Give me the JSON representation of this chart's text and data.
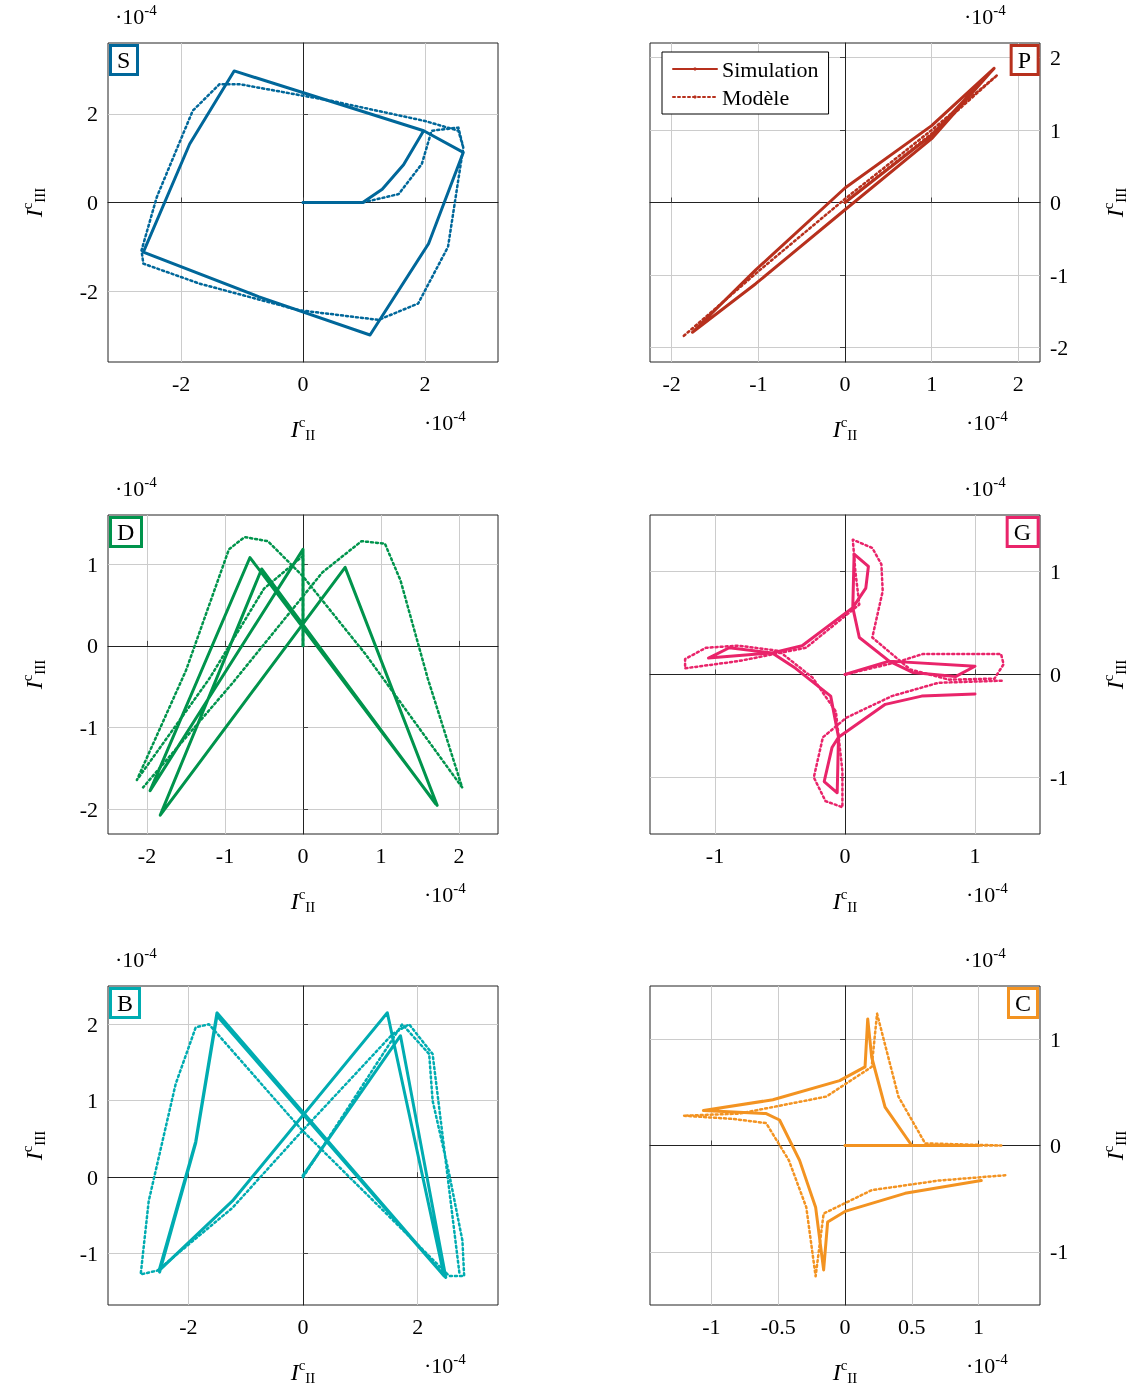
{
  "chart_data": [
    {
      "type": "line",
      "title": "S",
      "xlabel": "I$^{c}$$_{II}$",
      "ylabel": "I$^{c}$$_{III}$",
      "annotations": [
        "·10$^{-4}$",
        "·10$^{-4}$"
      ],
      "xlim": [
        -3.2,
        3.2
      ],
      "ylim": [
        -3.6,
        3.6
      ],
      "xticks": [
        -2,
        0,
        2
      ],
      "yticks": [
        -2,
        0,
        2
      ],
      "grid": true,
      "marker": "none",
      "series": [
        {
          "color": "#00679a",
          "line_style": "solid",
          "x": [
            0,
            0.98,
            1.3,
            1.65,
            1.98,
            2.63,
            2.06,
            1.1,
            -0.72,
            -2.62,
            -1.86,
            -1.13,
            1.98,
            2.63,
            2.06,
            1.1,
            -0.72,
            -2.62,
            -1.86,
            -1.13,
            1.98
          ],
          "values": [
            0,
            0,
            0.3,
            0.85,
            1.62,
            1.13,
            -0.93,
            -2.99,
            -2.13,
            -1.12,
            1.32,
            2.97,
            1.62,
            1.13,
            -0.93,
            -2.99,
            -2.13,
            -1.12,
            1.32,
            2.97,
            1.62
          ]
        },
        {
          "color": "#00679a",
          "line_style": "dotted",
          "x": [
            0,
            0.98,
            1.57,
            1.95,
            2.11,
            2.55,
            2.63,
            2.38,
            1.89,
            1.24,
            -0.07,
            -1.7,
            -2.62,
            -2.65,
            -2.4,
            -1.81,
            -1.37,
            -1.04,
            0.48,
            2.0,
            2.55,
            2.63
          ],
          "values": [
            0,
            0,
            0.19,
            0.87,
            1.62,
            1.69,
            1.24,
            -1.0,
            -2.28,
            -2.65,
            -2.43,
            -1.83,
            -1.38,
            -1.08,
            0.12,
            2.07,
            2.67,
            2.67,
            2.29,
            1.84,
            1.62,
            1.24
          ]
        }
      ]
    },
    {
      "type": "line",
      "title": "P",
      "xlabel": "I$^{c}$$_{II}$",
      "ylabel": "I$^{c}$$_{III}$",
      "annotations": [
        "·10$^{-4}$",
        "·10$^{-4}$"
      ],
      "xlim": [
        -2.25,
        2.25
      ],
      "ylim": [
        -2.2,
        2.2
      ],
      "xticks": [
        -2,
        -1,
        0,
        1,
        2
      ],
      "yticks": [
        -2,
        -1,
        0,
        1,
        2
      ],
      "grid": true,
      "marker": "none",
      "legend": "top left",
      "series": [
        {
          "name": "Simulation",
          "color": "#b7301d",
          "line_style": "solid",
          "x": [
            0,
            1.0,
            1.72,
            1.0,
            0,
            -1.03,
            -1.76,
            -1.03,
            0,
            1.0,
            1.72
          ],
          "values": [
            0,
            0.93,
            1.85,
            1.06,
            0.2,
            -0.93,
            -1.79,
            -1.12,
            -0.1,
            0.88,
            1.85
          ]
        },
        {
          "name": "Modèle",
          "color": "#b7301d",
          "line_style": "dotted",
          "x": [
            0,
            1.0,
            1.76,
            1.0,
            0,
            -1.0,
            -1.88
          ],
          "values": [
            0,
            0.95,
            1.76,
            1.0,
            0.05,
            -0.95,
            -1.86
          ]
        }
      ]
    },
    {
      "type": "line",
      "title": "D",
      "xlabel": "I$^{c}$$_{II}$",
      "ylabel": "I$^{c}$$_{III}$",
      "annotations": [
        "·10$^{-4}$",
        "·10$^{-4}$"
      ],
      "xlim": [
        -2.5,
        2.5
      ],
      "ylim": [
        -2.3,
        1.6
      ],
      "xticks": [
        -2,
        -1,
        0,
        1,
        2
      ],
      "yticks": [
        -2,
        -1,
        0,
        1
      ],
      "grid": true,
      "marker": "none",
      "series": [
        {
          "color": "#00944c",
          "line_style": "solid",
          "x": [
            0,
            0,
            -1.96,
            -0.68,
            1.72,
            0.54,
            -1.83,
            -0.53,
            1.7
          ],
          "values": [
            0,
            1.18,
            -1.77,
            1.08,
            -1.95,
            0.96,
            -2.07,
            0.94,
            -1.93
          ]
        },
        {
          "color": "#00944c",
          "line_style": "dotted",
          "x": [
            0,
            0,
            -0.5,
            -1.2,
            -2.13,
            -1.5,
            -0.95,
            -0.75,
            -0.45,
            0,
            0.8,
            2.04,
            1.6,
            1.25,
            1.05,
            0.75,
            0.25,
            -0.9,
            -2.05
          ],
          "values": [
            0,
            1.1,
            0.7,
            -0.4,
            -1.64,
            -0.3,
            1.18,
            1.33,
            1.28,
            0.85,
            -0.1,
            -1.73,
            -0.4,
            0.8,
            1.25,
            1.28,
            0.9,
            -0.45,
            -1.73
          ]
        }
      ]
    },
    {
      "type": "line",
      "title": "G",
      "xlabel": "I$^{c}$$_{II}$",
      "ylabel": "I$^{c}$$_{III}$",
      "annotations": [
        "·10$^{-4}$",
        "·10$^{-4}$"
      ],
      "xlim": [
        -1.5,
        1.5
      ],
      "ylim": [
        -1.55,
        1.55
      ],
      "xticks": [
        -1,
        0,
        1
      ],
      "yticks": [
        -1,
        0,
        1
      ],
      "grid": true,
      "marker": "none",
      "series": [
        {
          "color": "#e9246a",
          "line_style": "solid",
          "x": [
            0,
            0.34,
            1.0,
            0.85,
            0.52,
            0.34,
            0.11,
            0.06,
            0.07,
            0.18,
            0.16,
            0.06,
            -0.33,
            -0.56,
            -1.05,
            -0.89,
            -0.56,
            -0.38,
            -0.11,
            -0.05,
            -0.06,
            -0.16,
            -0.1,
            -0.05,
            0.31,
            0.59,
            1.0
          ],
          "values": [
            0,
            0.13,
            0.08,
            -0.02,
            0.02,
            0.13,
            0.36,
            0.65,
            1.17,
            1.05,
            0.84,
            0.65,
            0.28,
            0.21,
            0.16,
            0.26,
            0.21,
            0.06,
            -0.21,
            -0.61,
            -1.15,
            -1.04,
            -0.71,
            -0.61,
            -0.29,
            -0.21,
            -0.19
          ]
        },
        {
          "color": "#e9246a",
          "line_style": "dotted",
          "x": [
            0,
            0.4,
            0.6,
            1.2,
            1.22,
            1.15,
            0.8,
            0.5,
            0.21,
            0.29,
            0.28,
            0.21,
            0.06,
            0.08,
            0.11,
            -0.3,
            -0.82,
            -1.23,
            -1.23,
            -1.07,
            -0.82,
            -0.51,
            -0.25,
            -0.07,
            -0.02,
            -0.02,
            -0.15,
            -0.24,
            -0.17,
            0.01,
            0.36,
            0.72,
            1.21
          ],
          "values": [
            0,
            0.12,
            0.2,
            0.2,
            0.1,
            -0.04,
            -0.05,
            0.05,
            0.36,
            0.81,
            1.07,
            1.23,
            1.31,
            1.0,
            0.68,
            0.26,
            0.13,
            0.06,
            0.15,
            0.26,
            0.28,
            0.23,
            -0.03,
            -0.36,
            -0.94,
            -1.29,
            -1.23,
            -1.0,
            -0.61,
            -0.42,
            -0.21,
            -0.08,
            -0.06
          ]
        }
      ]
    },
    {
      "type": "line",
      "title": "B",
      "xlabel": "I$^{c}$$_{II}$",
      "ylabel": "I$^{c}$$_{III}$",
      "annotations": [
        "·10$^{-4}$",
        "·10$^{-4}$"
      ],
      "xlim": [
        -3.4,
        3.4
      ],
      "ylim": [
        -1.67,
        2.5
      ],
      "xticks": [
        -2,
        0,
        2
      ],
      "yticks": [
        -1,
        0,
        1,
        2
      ],
      "grid": true,
      "marker": "none",
      "series": [
        {
          "color": "#00acb1",
          "line_style": "solid",
          "x": [
            0,
            1.7,
            2.49,
            -1.5,
            -1.87,
            -2.51,
            -1.23,
            1.47,
            2.46,
            -1.5,
            -1.87,
            -2.5
          ],
          "values": [
            0.02,
            1.85,
            -1.31,
            2.15,
            0.47,
            -1.22,
            -0.31,
            2.15,
            -1.29,
            2.11,
            0.45,
            -1.24
          ]
        },
        {
          "color": "#00acb1",
          "line_style": "dotted",
          "x": [
            0,
            1.73,
            2.2,
            2.26,
            2.55,
            2.78,
            2.81,
            2.55,
            -0.01,
            -1.64,
            -1.87,
            -2.22,
            -2.69,
            -2.83,
            -2.54,
            -1.23,
            -0.07,
            1.56,
            1.85,
            2.26,
            2.73
          ],
          "values": [
            0,
            2.0,
            1.61,
            1.0,
            0.04,
            -0.83,
            -1.29,
            -1.29,
            0.61,
            2.0,
            1.96,
            1.22,
            -0.31,
            -1.27,
            -1.22,
            -0.4,
            0.56,
            1.87,
            2.0,
            1.61,
            -1.27
          ]
        }
      ]
    },
    {
      "type": "line",
      "title": "C",
      "xlabel": "I$^{c}$$_{II}$",
      "ylabel": "I$^{c}$$_{III}$",
      "annotations": [
        "·10$^{-4}$",
        "·10$^{-4}$"
      ],
      "xlim": [
        -1.46,
        1.46
      ],
      "ylim": [
        -1.5,
        1.5
      ],
      "xticks": [
        -1,
        -0.5,
        0,
        0.5,
        1
      ],
      "yticks": [
        -1,
        0,
        1
      ],
      "grid": true,
      "marker": "none",
      "series": [
        {
          "color": "#f39321",
          "line_style": "solid",
          "x": [
            0,
            1.0,
            0.5,
            0.3,
            0.2,
            0.17,
            0.15,
            -0.04,
            -0.54,
            -1.06,
            -0.59,
            -0.49,
            -0.34,
            -0.22,
            -0.16,
            -0.13,
            0,
            0.45,
            1.02
          ],
          "values": [
            0,
            0,
            0,
            0.36,
            0.83,
            1.19,
            0.74,
            0.61,
            0.43,
            0.33,
            0.3,
            0.24,
            -0.14,
            -0.58,
            -1.17,
            -0.72,
            -0.62,
            -0.45,
            -0.33
          ]
        },
        {
          "color": "#f39321",
          "line_style": "dotted",
          "x": [
            0,
            1.17,
            0.6,
            0.4,
            0.24,
            0.2,
            -0.14,
            -0.79,
            -1.21,
            -0.84,
            -0.59,
            -0.42,
            -0.29,
            -0.22,
            -0.16,
            0.2,
            0.7,
            1.2
          ],
          "values": [
            0,
            0,
            0.02,
            0.46,
            1.24,
            0.74,
            0.46,
            0.3,
            0.28,
            0.25,
            0.21,
            -0.14,
            -0.58,
            -1.23,
            -0.64,
            -0.42,
            -0.33,
            -0.28
          ]
        }
      ]
    }
  ]
}
